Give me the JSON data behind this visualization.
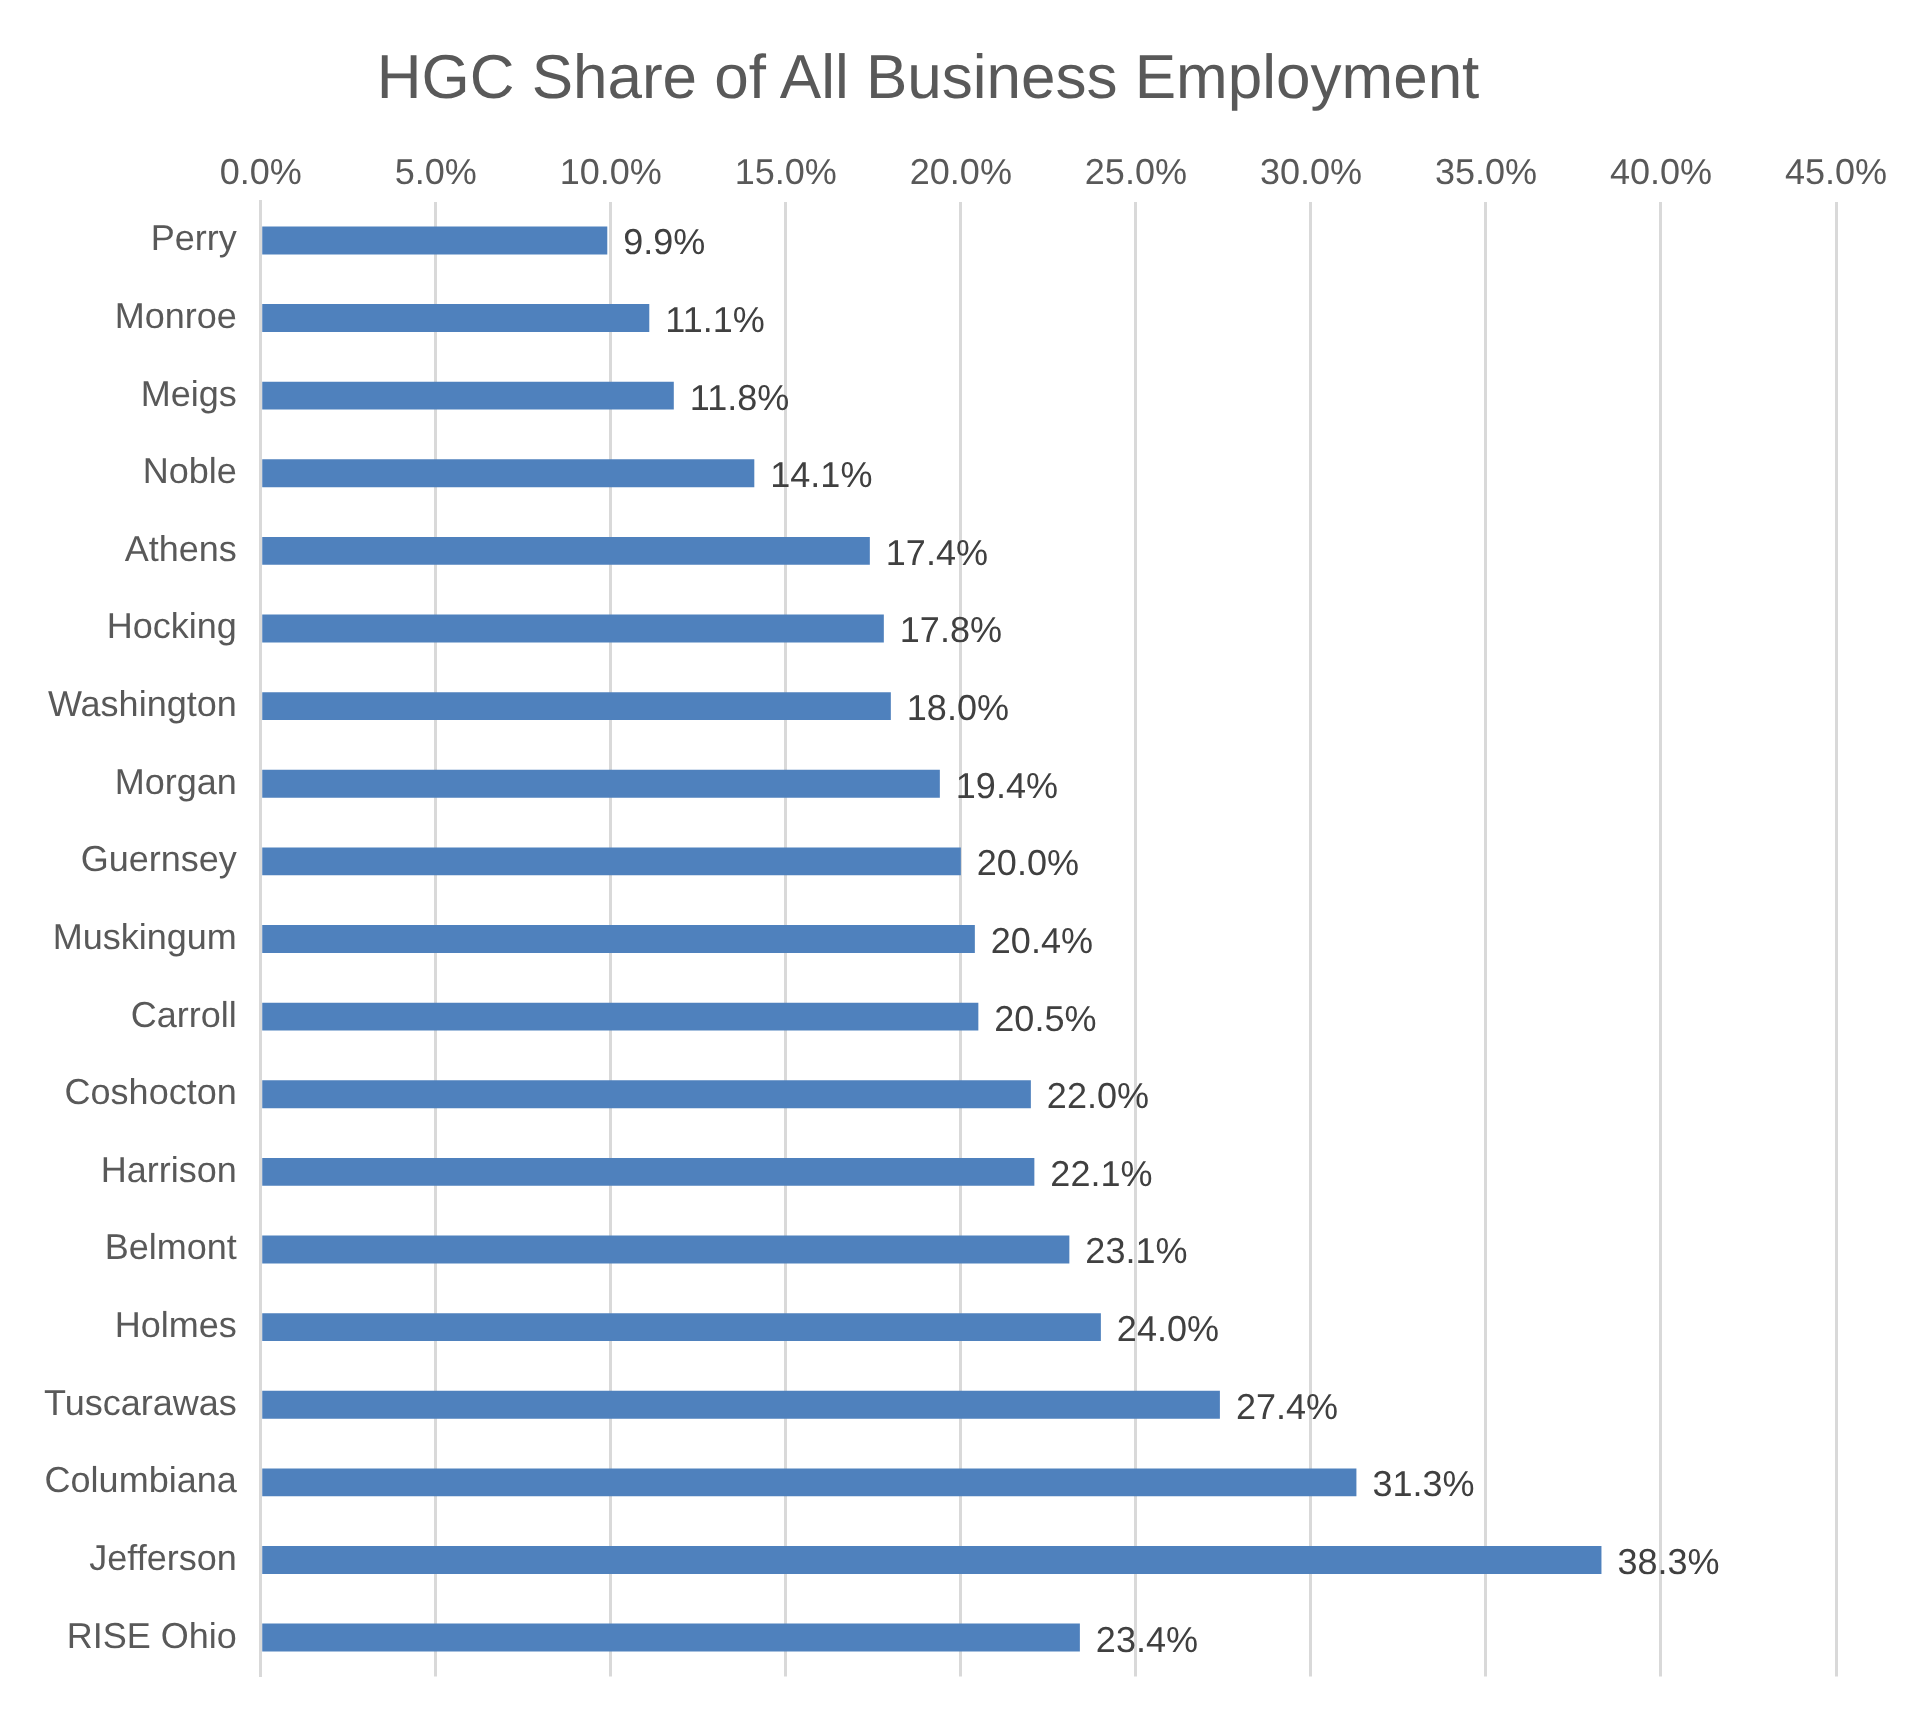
{
  "chart_data": {
    "type": "bar",
    "orientation": "horizontal",
    "title": "HGC Share of All Business Employment",
    "categories": [
      "Perry",
      "Monroe",
      "Meigs",
      "Noble",
      "Athens",
      "Hocking",
      "Washington",
      "Morgan",
      "Guernsey",
      "Muskingum",
      "Carroll",
      "Coshocton",
      "Harrison",
      "Belmont",
      "Holmes",
      "Tuscarawas",
      "Columbiana",
      "Jefferson",
      "RISE Ohio"
    ],
    "values": [
      9.9,
      11.1,
      11.8,
      14.1,
      17.4,
      17.8,
      18.0,
      19.4,
      20.0,
      20.4,
      20.5,
      22.0,
      22.1,
      23.1,
      24.0,
      27.4,
      31.3,
      38.3,
      23.4
    ],
    "value_labels": [
      "9.9%",
      "11.1%",
      "11.8%",
      "14.1%",
      "17.4%",
      "17.8%",
      "18.0%",
      "19.4%",
      "20.0%",
      "20.4%",
      "20.5%",
      "22.0%",
      "22.1%",
      "23.1%",
      "24.0%",
      "27.4%",
      "31.3%",
      "38.3%",
      "23.4%"
    ],
    "color": "#4f81bd",
    "xlim": [
      0,
      45
    ],
    "xticks": [
      {
        "value": 0,
        "label": "0.0%"
      },
      {
        "value": 5,
        "label": "5.0%"
      },
      {
        "value": 10,
        "label": "10.0%"
      },
      {
        "value": 15,
        "label": "15.0%"
      },
      {
        "value": 20,
        "label": "20.0%"
      },
      {
        "value": 25,
        "label": "25.0%"
      },
      {
        "value": 30,
        "label": "30.0%"
      },
      {
        "value": 35,
        "label": "35.0%"
      },
      {
        "value": 40,
        "label": "40.0%"
      },
      {
        "value": 45,
        "label": "45.0%"
      }
    ],
    "grid": "x"
  }
}
